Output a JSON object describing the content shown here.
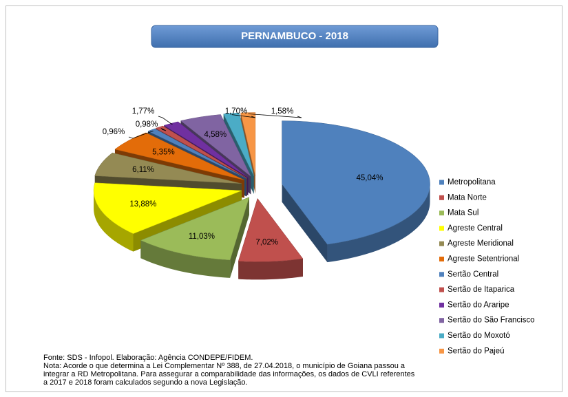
{
  "chart_data": {
    "type": "pie3d",
    "title": "PERNAMBUCO - 2018",
    "categories": [
      "Metropolitana",
      "Mata Norte",
      "Mata Sul",
      "Agreste Central",
      "Agreste Meridional",
      "Agreste Setentrional",
      "Sertão Central",
      "Sertão de Itaparica",
      "Sertão do Araripe",
      "Sertão do São Francisco",
      "Sertão do Moxotó",
      "Sertão do Pajeú"
    ],
    "values": [
      45.04,
      7.02,
      11.03,
      13.88,
      6.11,
      5.35,
      0.96,
      0.98,
      1.77,
      4.58,
      1.7,
      1.58
    ],
    "value_labels": [
      "45,04%",
      "7,02%",
      "11,03%",
      "13,88%",
      "6,11%",
      "5,35%",
      "0,96%",
      "0,98%",
      "1,77%",
      "4,58%",
      "1,70%",
      "1,58%"
    ],
    "colors": [
      "#4f81bd",
      "#c0504d",
      "#9bbb59",
      "#ffff00",
      "#948a54",
      "#e36c09",
      "#4f81bd",
      "#c0504d",
      "#7030a0",
      "#8064a2",
      "#4bacc6",
      "#f79646"
    ],
    "legend": "right",
    "notes": [
      "Fonte: SDS - Infopol. Elaboração: Agência CONDEPE/FIDEM.",
      "Nota: Acorde o que determina a Lei Complementar Nº 388, de 27.04.2018, o município de Goiana passou a",
      "integrar a RD Metropolitana. Para assegurar a comparabilidade das informações, os dados de CVLI referentes",
      "a 2017 e 2018 foram calculados segundo a nova Legislação."
    ]
  }
}
